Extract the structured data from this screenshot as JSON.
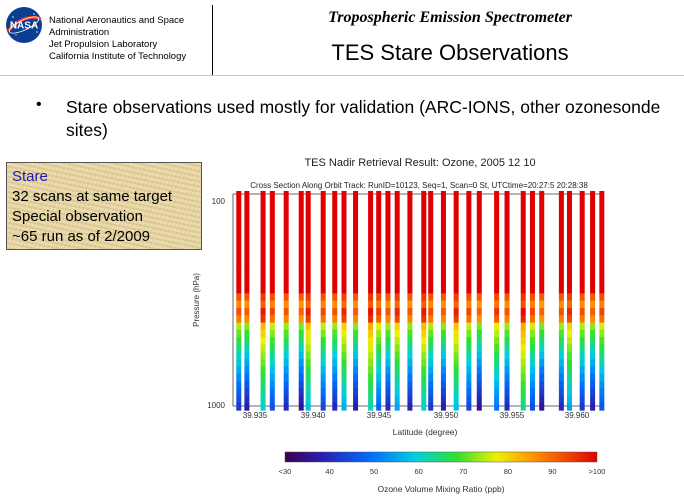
{
  "header": {
    "org_lines": [
      "National Aeronautics and Space",
      "Administration",
      "Jet Propulsion Laboratory",
      "California Institute of Technology"
    ],
    "logo_text": "NASA",
    "subtitle": "Tropospheric Emission Spectrometer",
    "title": "TES Stare Observations"
  },
  "bullet": {
    "text": "Stare observations used mostly for validation (ARC-IONS, other ozonesonde sites)"
  },
  "note": {
    "title": "Stare",
    "lines": [
      "32 scans at same target",
      "Special observation",
      "~65 run as of 2/2009"
    ]
  },
  "figure": {
    "title": "TES Nadir Retrieval Result: Ozone, 2005 12 10",
    "info_line": "Cross Section Along Orbit Track: RunID=10123, Seq=1, Scan=0 St, UTCtime=20:27:5 20:28:38",
    "ylabel": "Pressure (hPa)",
    "xlabel": "Latitude (degree)",
    "ytick_labels": [
      "100",
      "1000"
    ],
    "xtick_labels": [
      "39.935",
      "39.940",
      "39.945",
      "39.950",
      "39.955",
      "39.960"
    ],
    "colorbar_label": "Ozone Volume Mixing Ratio (ppb)",
    "colorbar_ticks": [
      "<30",
      "40",
      "50",
      "60",
      "70",
      "80",
      "90",
      ">100"
    ]
  },
  "chart_data": {
    "type": "heatmap",
    "title": "TES Nadir Retrieval Result: Ozone, 2005 12 10",
    "xlabel": "Latitude (degree)",
    "ylabel": "Pressure (hPa)",
    "xlim": [
      39.931,
      39.963
    ],
    "ylim": [
      1000,
      100
    ],
    "y_scale": "log",
    "colorbar_range": [
      30,
      100
    ],
    "colorbar_label": "Ozone Volume Mixing Ratio (ppb)",
    "profiles_latitude": [
      39.9315,
      39.9322,
      39.9336,
      39.9344,
      39.9356,
      39.9369,
      39.9375,
      39.9388,
      39.9398,
      39.9406,
      39.9416,
      39.9429,
      39.9436,
      39.9444,
      39.9452,
      39.9463,
      39.9475,
      39.9481,
      39.9492,
      39.9503,
      39.9514,
      39.9523,
      39.9538,
      39.9547,
      39.9561,
      39.9569,
      39.9577,
      39.9594,
      39.9601,
      39.9612,
      39.9621,
      39.9629
    ],
    "profiles_surface_ppb": [
      42,
      38,
      60,
      45,
      40,
      36,
      58,
      44,
      40,
      56,
      38,
      62,
      48,
      40,
      55,
      39,
      60,
      42,
      38,
      58,
      44,
      36,
      50,
      40,
      64,
      45,
      36,
      40,
      55,
      42,
      38,
      46
    ]
  }
}
